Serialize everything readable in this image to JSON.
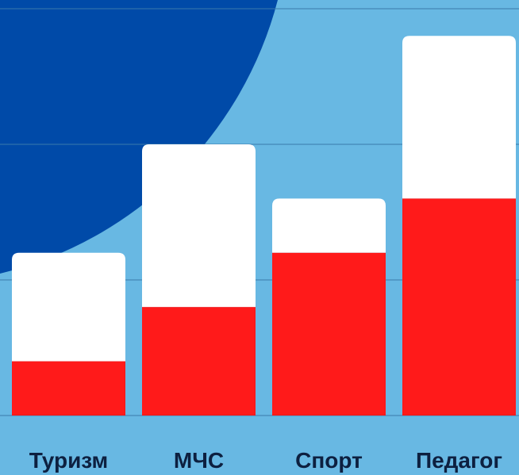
{
  "chart_data": {
    "type": "bar",
    "stacked": true,
    "categories": [
      "Туризм",
      "МЧС",
      "Спорт",
      "Педагог"
    ],
    "series": [
      {
        "values": [
          2,
          4,
          6,
          8
        ],
        "color": "#ff1a1a"
      },
      {
        "values": [
          4,
          6,
          2,
          6
        ],
        "color": "#ffffff"
      }
    ],
    "ylim": [
      0,
      15
    ],
    "gridlines": [
      5,
      10,
      15
    ],
    "grid": true,
    "colors": {
      "background": "#68b8e3",
      "decorative_circle": "#004aa8",
      "gridline": "#3a7aab"
    }
  }
}
